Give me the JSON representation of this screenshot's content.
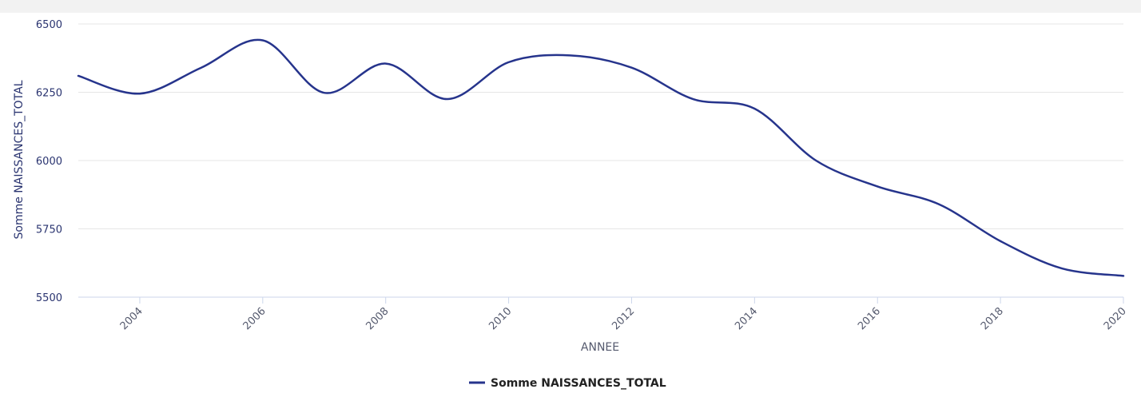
{
  "chart_data": {
    "type": "line",
    "title": "",
    "xlabel": "ANNEE",
    "ylabel": "Somme NAISSANCES_TOTAL",
    "x_ticks": [
      "2004",
      "2006",
      "2008",
      "2010",
      "2012",
      "2014",
      "2016",
      "2018",
      "2020"
    ],
    "y_ticks": [
      "5500",
      "5750",
      "6000",
      "6250",
      "6500"
    ],
    "xlim": [
      2003,
      2020
    ],
    "ylim": [
      5500,
      6500
    ],
    "grid": true,
    "legend_position": "bottom-center",
    "x": [
      2003,
      2004,
      2005,
      2006,
      2007,
      2008,
      2009,
      2010,
      2011,
      2012,
      2013,
      2014,
      2015,
      2016,
      2017,
      2018,
      2019,
      2020
    ],
    "series": [
      {
        "name": "Somme NAISSANCES_TOTAL",
        "color": "#26348c",
        "values": [
          6310,
          6245,
          6340,
          6440,
          6248,
          6355,
          6225,
          6360,
          6385,
          6340,
          6225,
          6190,
          6000,
          5905,
          5840,
          5705,
          5605,
          5578
        ]
      }
    ]
  }
}
